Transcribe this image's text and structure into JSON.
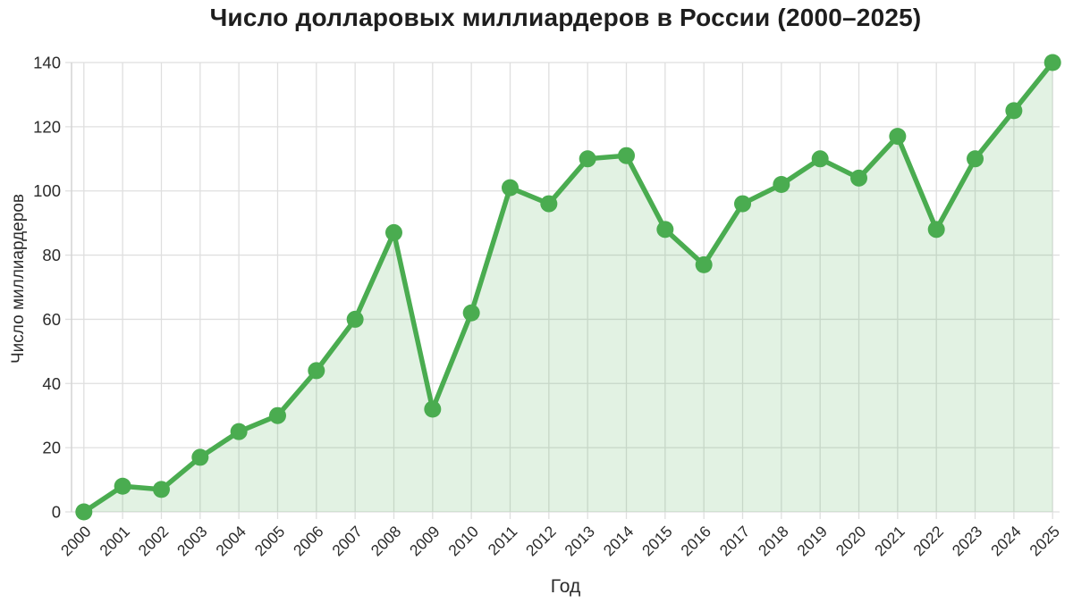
{
  "chart_data": {
    "type": "line",
    "title": "Число долларовых миллиардеров в России (2000–2025)",
    "xlabel": "Год",
    "ylabel": "Число миллиардеров",
    "categories": [
      "2000",
      "2001",
      "2002",
      "2003",
      "2004",
      "2005",
      "2006",
      "2007",
      "2008",
      "2009",
      "2010",
      "2011",
      "2012",
      "2013",
      "2014",
      "2015",
      "2016",
      "2017",
      "2018",
      "2019",
      "2020",
      "2021",
      "2022",
      "2023",
      "2024",
      "2025"
    ],
    "values": [
      0,
      8,
      7,
      17,
      25,
      30,
      44,
      60,
      87,
      32,
      62,
      101,
      96,
      110,
      111,
      88,
      77,
      96,
      102,
      110,
      104,
      117,
      88,
      110,
      125,
      140
    ],
    "ylim": [
      0,
      140
    ],
    "yticks": [
      0,
      20,
      40,
      60,
      80,
      100,
      120,
      140
    ],
    "grid": true,
    "legend": "none",
    "area_fill": true,
    "markers": true,
    "colors": {
      "line": "#4aac50",
      "marker": "#4aac50",
      "area": "#4caf50",
      "area_opacity": "0.16",
      "grid": "#dfdfdf",
      "axis": "#d4d4d4",
      "tick_text": "#2b2b2b",
      "title_text": "#1e1e1e"
    }
  }
}
